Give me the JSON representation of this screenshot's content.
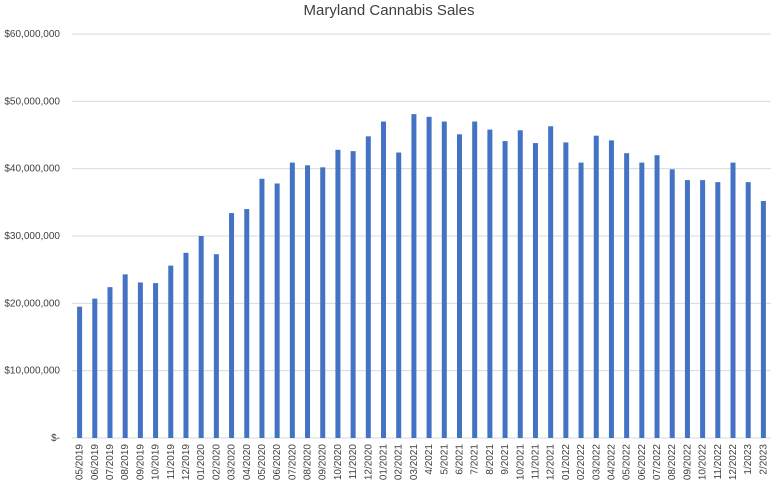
{
  "chart_data": {
    "type": "bar",
    "title": "Maryland Cannabis Sales",
    "xlabel": "",
    "ylabel": "",
    "ylim": [
      0,
      60000000
    ],
    "y_ticks": [
      "$-",
      "$10,000,000",
      "$20,000,000",
      "$30,000,000",
      "$40,000,000",
      "$50,000,000",
      "$60,000,000"
    ],
    "y_tick_values": [
      0,
      10000000,
      20000000,
      30000000,
      40000000,
      50000000,
      60000000
    ],
    "grid": true,
    "bar_color": "#4472C4",
    "categories": [
      "05/2019",
      "06/2019",
      "07/2019",
      "08/2019",
      "09/2019",
      "10/2019",
      "11/2019",
      "12/2019",
      "01/2020",
      "02/2020",
      "03/2020",
      "04/2020",
      "05/2020",
      "06/2020",
      "07/2020",
      "08/2020",
      "09/2020",
      "10/2020",
      "11/2020",
      "12/2020",
      "01/2021",
      "02/2021",
      "03/2021",
      "4/2021",
      "5/2021",
      "6/2021",
      "7/2021",
      "8/2021",
      "9/2021",
      "10/2021",
      "11/2021",
      "12/2021",
      "01/2022",
      "02/2022",
      "03/2022",
      "04/2022",
      "05/2022",
      "06/2022",
      "07/2022",
      "08/2022",
      "09/2022",
      "10/2022",
      "11/2022",
      "12/2022",
      "1/2023",
      "2/2023"
    ],
    "values": [
      19500000,
      20700000,
      22400000,
      24300000,
      23100000,
      23000000,
      25600000,
      27500000,
      30000000,
      27300000,
      33400000,
      34000000,
      38500000,
      37800000,
      40900000,
      40500000,
      40200000,
      42800000,
      42600000,
      44800000,
      47000000,
      42400000,
      48100000,
      47700000,
      47000000,
      45100000,
      47000000,
      45800000,
      44100000,
      45700000,
      43800000,
      46300000,
      43900000,
      40900000,
      44900000,
      44200000,
      42300000,
      40900000,
      42000000,
      39900000,
      38300000,
      38300000,
      38000000,
      40900000,
      38000000,
      35200000
    ]
  }
}
